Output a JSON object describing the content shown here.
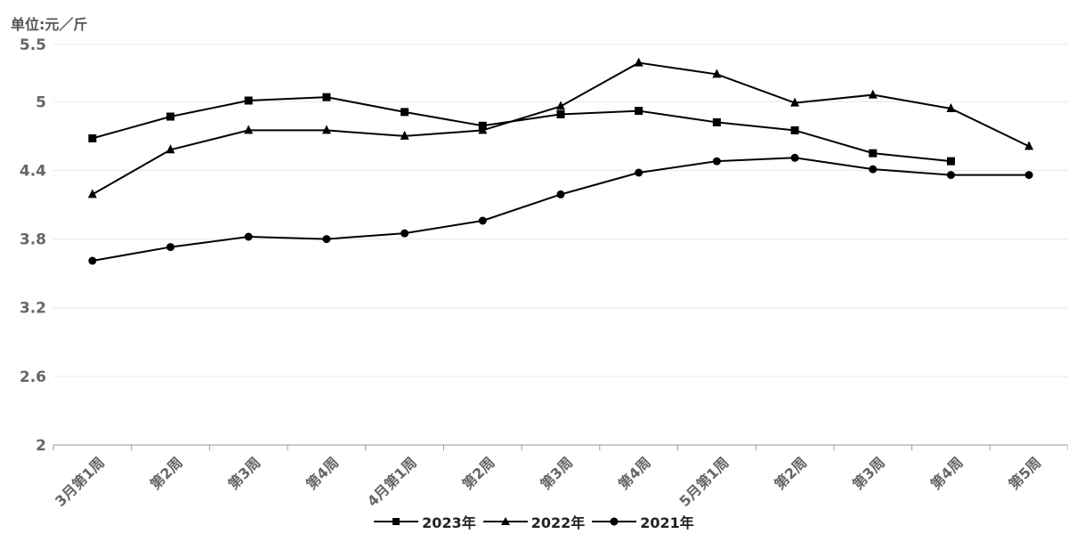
{
  "chart_data": {
    "type": "line",
    "unit_label": "单位:元／斤",
    "categories": [
      "3月第1周",
      "第2周",
      "第3周",
      "第4周",
      "4月第1周",
      "第2周",
      "第3周",
      "第4周",
      "5月第1周",
      "第2周",
      "第3周",
      "第4周",
      "第5周"
    ],
    "ylim": [
      2,
      5.5
    ],
    "yticks": [
      "2",
      "2.6",
      "3.2",
      "3.8",
      "4.4",
      "5",
      "5.5"
    ],
    "grid": true,
    "legend_position": "bottom",
    "series": [
      {
        "name": "2023年",
        "marker": "square",
        "color": "#000000",
        "values": [
          4.68,
          4.87,
          5.01,
          5.04,
          4.91,
          4.79,
          4.89,
          4.92,
          4.82,
          4.75,
          4.55,
          4.48,
          null
        ]
      },
      {
        "name": "2022年",
        "marker": "triangle",
        "color": "#000000",
        "values": [
          4.19,
          4.58,
          4.75,
          4.75,
          4.7,
          4.75,
          4.96,
          5.34,
          5.24,
          4.99,
          5.06,
          4.94,
          4.61
        ]
      },
      {
        "name": "2021年",
        "marker": "circle",
        "color": "#000000",
        "values": [
          3.61,
          3.73,
          3.82,
          3.8,
          3.85,
          3.96,
          4.19,
          4.38,
          4.48,
          4.51,
          4.41,
          4.36,
          4.36
        ]
      }
    ]
  }
}
